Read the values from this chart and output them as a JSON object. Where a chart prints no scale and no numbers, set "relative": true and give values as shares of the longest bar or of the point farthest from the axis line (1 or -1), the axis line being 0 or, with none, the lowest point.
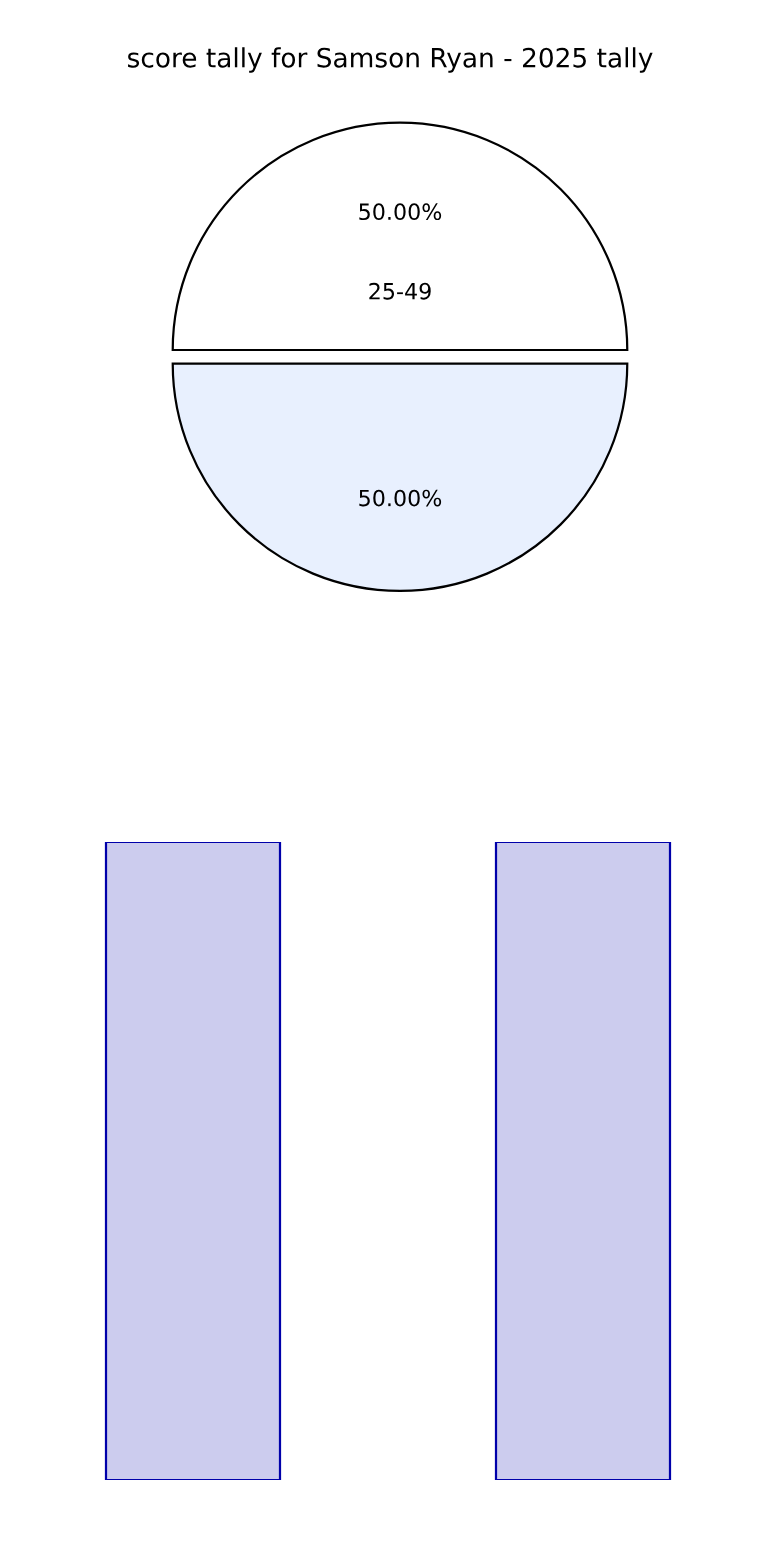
{
  "chart_data": [
    {
      "type": "pie",
      "title": "score tally for Samson Ryan - 2025 tally",
      "categories": [
        "25-49",
        null
      ],
      "values": [
        50,
        50
      ],
      "colors": [
        "#ffffff",
        "#e8f0fe"
      ],
      "value_labels": [
        "50.00%",
        "50.00%"
      ]
    },
    {
      "type": "bar",
      "relative": true,
      "categories": [
        null,
        null
      ],
      "values": [
        1,
        1
      ],
      "color": "#ccccee",
      "tick_labels": false
    }
  ]
}
